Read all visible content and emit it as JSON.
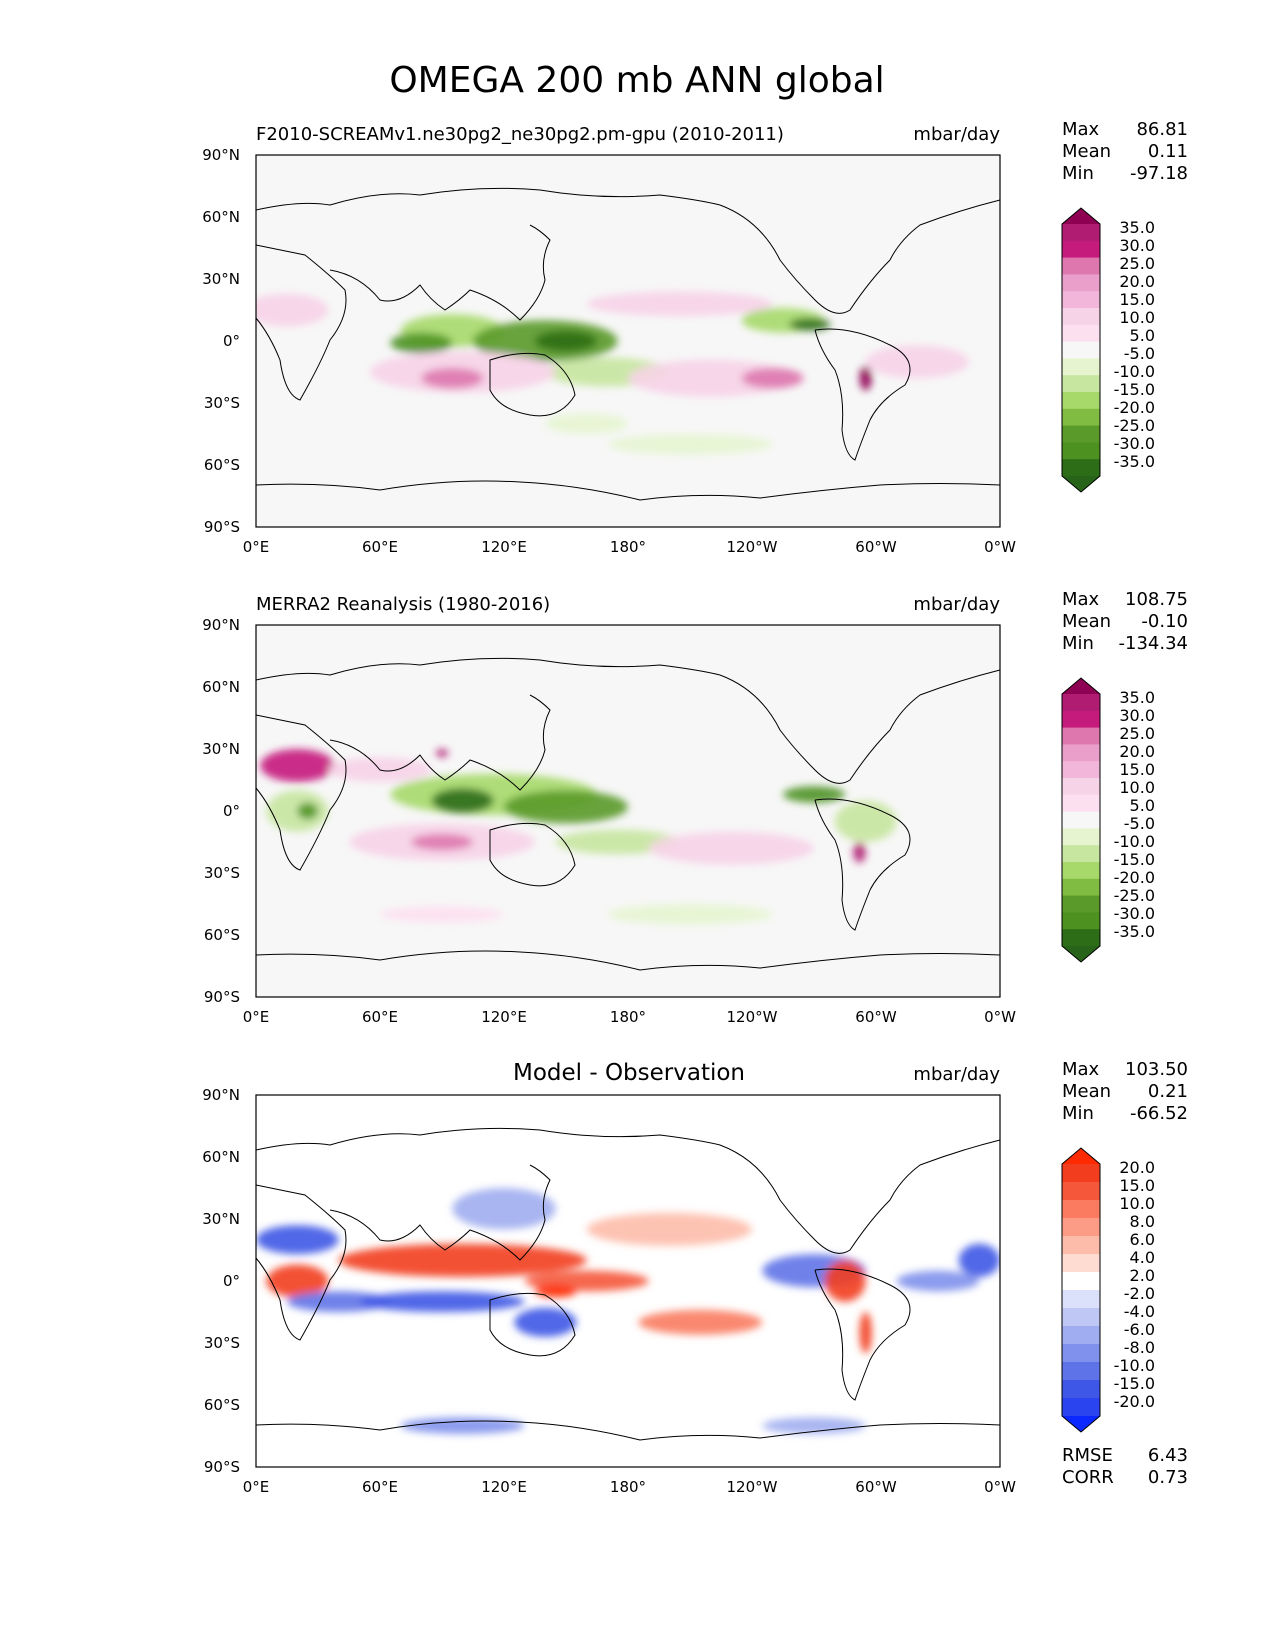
{
  "figure": {
    "title": "OMEGA 200 mb ANN global"
  },
  "axes_ticks": {
    "lat": [
      "90°N",
      "60°N",
      "30°N",
      "0°",
      "30°S",
      "60°S",
      "90°S"
    ],
    "lon": [
      "0°E",
      "60°E",
      "120°E",
      "180°",
      "120°W",
      "60°W",
      "0°W"
    ]
  },
  "panels": [
    {
      "title_left": "F2010-SCREAMv1.ne30pg2_ne30pg2.pm-gpu (2010-2011)",
      "title_center": "",
      "units": "mbar/day",
      "stats": [
        {
          "label": "Max",
          "value": "86.81"
        },
        {
          "label": "Mean",
          "value": "0.11"
        },
        {
          "label": "Min",
          "value": "-97.18"
        }
      ],
      "colorbar": {
        "labels": [
          "35.0",
          "30.0",
          "25.0",
          "20.0",
          "15.0",
          "10.0",
          "5.0",
          "-5.0",
          "-10.0",
          "-15.0",
          "-20.0",
          "-25.0",
          "-30.0",
          "-35.0"
        ],
        "colors": [
          "#8e0152",
          "#b01c72",
          "#c51b7d",
          "#de77ae",
          "#ea9fcb",
          "#f1b6da",
          "#f7d3e8",
          "#fde0ef",
          "#f7f7f7",
          "#e6f5d0",
          "#c7e6a0",
          "#a6d96a",
          "#7fbc41",
          "#5a9a2a",
          "#4d9221",
          "#2d6d18",
          "#276419"
        ]
      }
    },
    {
      "title_left": "MERRA2 Reanalysis (1980-2016)",
      "title_center": "",
      "units": "mbar/day",
      "stats": [
        {
          "label": "Max",
          "value": "108.75"
        },
        {
          "label": "Mean",
          "value": "-0.10"
        },
        {
          "label": "Min",
          "value": "-134.34"
        }
      ],
      "colorbar": {
        "labels": [
          "35.0",
          "30.0",
          "25.0",
          "20.0",
          "15.0",
          "10.0",
          "5.0",
          "-5.0",
          "-10.0",
          "-15.0",
          "-20.0",
          "-25.0",
          "-30.0",
          "-35.0"
        ],
        "colors": [
          "#8e0152",
          "#b01c72",
          "#c51b7d",
          "#de77ae",
          "#ea9fcb",
          "#f1b6da",
          "#f7d3e8",
          "#fde0ef",
          "#f7f7f7",
          "#e6f5d0",
          "#c7e6a0",
          "#a6d96a",
          "#7fbc41",
          "#5a9a2a",
          "#4d9221",
          "#2d6d18",
          "#276419"
        ]
      }
    },
    {
      "title_left": "",
      "title_center": "Model - Observation",
      "units": "mbar/day",
      "stats": [
        {
          "label": "Max",
          "value": "103.50"
        },
        {
          "label": "Mean",
          "value": "0.21"
        },
        {
          "label": "Min",
          "value": "-66.52"
        }
      ],
      "extra_stats": [
        {
          "label": "RMSE",
          "value": "6.43"
        },
        {
          "label": "CORR",
          "value": "0.73"
        }
      ],
      "colorbar": {
        "labels": [
          "20.0",
          "15.0",
          "10.0",
          "8.0",
          "6.0",
          "4.0",
          "2.0",
          "-2.0",
          "-4.0",
          "-6.0",
          "-8.0",
          "-10.0",
          "-15.0",
          "-20.0"
        ],
        "colors": [
          "#ff2a00",
          "#f23d1f",
          "#f5573b",
          "#fa7b60",
          "#fc9c86",
          "#fdbcaa",
          "#fedcd2",
          "#ffffff",
          "#dbe1fb",
          "#bfc8f5",
          "#a0adf0",
          "#7f91ec",
          "#5f73e8",
          "#3f57e6",
          "#2a44f0",
          "#0a28ff"
        ]
      }
    }
  ],
  "chart_data": [
    {
      "type": "heatmap",
      "title": "F2010-SCREAMv1.ne30pg2_ne30pg2.pm-gpu (2010-2011)",
      "units": "mbar/day",
      "xlim": [
        0,
        360
      ],
      "ylim": [
        -90,
        90
      ],
      "stats": {
        "max": 86.81,
        "mean": 0.11,
        "min": -97.18
      },
      "levels": [
        -35,
        -30,
        -25,
        -20,
        -15,
        -10,
        -5,
        5,
        10,
        15,
        20,
        25,
        30,
        35
      ],
      "features": [
        {
          "lon": 15,
          "lat": 15,
          "rx": 20,
          "ry": 8,
          "v": 12
        },
        {
          "lon": 95,
          "lat": 5,
          "rx": 25,
          "ry": 8,
          "v": -18
        },
        {
          "lon": 80,
          "lat": -1,
          "rx": 15,
          "ry": 5,
          "v": -28
        },
        {
          "lon": 140,
          "lat": 0,
          "rx": 35,
          "ry": 10,
          "v": -22
        },
        {
          "lon": 150,
          "lat": 0,
          "rx": 15,
          "ry": 5,
          "v": -32
        },
        {
          "lon": 170,
          "lat": -15,
          "rx": 30,
          "ry": 7,
          "v": -14
        },
        {
          "lon": 100,
          "lat": -15,
          "rx": 45,
          "ry": 10,
          "v": 12
        },
        {
          "lon": 95,
          "lat": -18,
          "rx": 15,
          "ry": 5,
          "v": 22
        },
        {
          "lon": 220,
          "lat": -18,
          "rx": 40,
          "ry": 9,
          "v": 12
        },
        {
          "lon": 250,
          "lat": -18,
          "rx": 15,
          "ry": 5,
          "v": 22
        },
        {
          "lon": 255,
          "lat": 10,
          "rx": 20,
          "ry": 6,
          "v": -20
        },
        {
          "lon": 268,
          "lat": 8,
          "rx": 10,
          "ry": 3,
          "v": -33
        },
        {
          "lon": 205,
          "lat": 18,
          "rx": 45,
          "ry": 6,
          "v": 10
        },
        {
          "lon": 295,
          "lat": -18,
          "rx": 3,
          "ry": 6,
          "v": 36
        },
        {
          "lon": 160,
          "lat": -40,
          "rx": 20,
          "ry": 5,
          "v": -8
        },
        {
          "lon": 210,
          "lat": -50,
          "rx": 40,
          "ry": 5,
          "v": -8
        },
        {
          "lon": 320,
          "lat": -10,
          "rx": 25,
          "ry": 8,
          "v": 10
        }
      ]
    },
    {
      "type": "heatmap",
      "title": "MERRA2 Reanalysis (1980-2016)",
      "units": "mbar/day",
      "xlim": [
        0,
        360
      ],
      "ylim": [
        -90,
        90
      ],
      "stats": {
        "max": 108.75,
        "mean": -0.1,
        "min": -134.34
      },
      "levels": [
        -35,
        -30,
        -25,
        -20,
        -15,
        -10,
        -5,
        5,
        10,
        15,
        20,
        25,
        30,
        35
      ],
      "features": [
        {
          "lon": 20,
          "lat": 22,
          "rx": 18,
          "ry": 8,
          "v": 25
        },
        {
          "lon": 20,
          "lat": 0,
          "rx": 15,
          "ry": 10,
          "v": -14
        },
        {
          "lon": 25,
          "lat": 0,
          "rx": 5,
          "ry": 4,
          "v": -28
        },
        {
          "lon": 115,
          "lat": 8,
          "rx": 50,
          "ry": 10,
          "v": -20
        },
        {
          "lon": 100,
          "lat": 5,
          "rx": 15,
          "ry": 6,
          "v": -32
        },
        {
          "lon": 150,
          "lat": 2,
          "rx": 30,
          "ry": 8,
          "v": -24
        },
        {
          "lon": 175,
          "lat": -15,
          "rx": 30,
          "ry": 6,
          "v": -15
        },
        {
          "lon": 90,
          "lat": -15,
          "rx": 45,
          "ry": 9,
          "v": 14
        },
        {
          "lon": 90,
          "lat": -15,
          "rx": 15,
          "ry": 4,
          "v": 22
        },
        {
          "lon": 230,
          "lat": -18,
          "rx": 40,
          "ry": 8,
          "v": 12
        },
        {
          "lon": 270,
          "lat": 8,
          "rx": 15,
          "ry": 4,
          "v": -28
        },
        {
          "lon": 295,
          "lat": -5,
          "rx": 15,
          "ry": 10,
          "v": -14
        },
        {
          "lon": 292,
          "lat": -20,
          "rx": 3,
          "ry": 5,
          "v": 34
        },
        {
          "lon": 60,
          "lat": 20,
          "rx": 25,
          "ry": 6,
          "v": 12
        },
        {
          "lon": 90,
          "lat": 28,
          "rx": 3,
          "ry": 2,
          "v": 33
        },
        {
          "lon": 210,
          "lat": -50,
          "rx": 40,
          "ry": 5,
          "v": -8
        },
        {
          "lon": 90,
          "lat": -50,
          "rx": 30,
          "ry": 4,
          "v": 9
        }
      ]
    },
    {
      "type": "heatmap",
      "title": "Model - Observation",
      "units": "mbar/day",
      "xlim": [
        0,
        360
      ],
      "ylim": [
        -90,
        90
      ],
      "stats": {
        "max": 103.5,
        "mean": 0.21,
        "min": -66.52,
        "rmse": 6.43,
        "corr": 0.73
      },
      "levels": [
        -20,
        -15,
        -10,
        -8,
        -6,
        -4,
        -2,
        2,
        4,
        6,
        8,
        10,
        15,
        20
      ],
      "features": [
        {
          "lon": 100,
          "lat": 10,
          "rx": 60,
          "ry": 8,
          "v": 15
        },
        {
          "lon": 20,
          "lat": 0,
          "rx": 15,
          "ry": 8,
          "v": 18
        },
        {
          "lon": 20,
          "lat": 20,
          "rx": 20,
          "ry": 7,
          "v": -14
        },
        {
          "lon": 40,
          "lat": -10,
          "rx": 25,
          "ry": 5,
          "v": -10
        },
        {
          "lon": 90,
          "lat": -10,
          "rx": 40,
          "ry": 5,
          "v": -14
        },
        {
          "lon": 160,
          "lat": 0,
          "rx": 30,
          "ry": 5,
          "v": 12
        },
        {
          "lon": 145,
          "lat": -5,
          "rx": 10,
          "ry": 3,
          "v": 20
        },
        {
          "lon": 140,
          "lat": -20,
          "rx": 15,
          "ry": 7,
          "v": -12
        },
        {
          "lon": 215,
          "lat": -20,
          "rx": 30,
          "ry": 6,
          "v": 9
        },
        {
          "lon": 270,
          "lat": 5,
          "rx": 25,
          "ry": 8,
          "v": -10
        },
        {
          "lon": 285,
          "lat": 0,
          "rx": 10,
          "ry": 10,
          "v": 15
        },
        {
          "lon": 295,
          "lat": -25,
          "rx": 3,
          "ry": 10,
          "v": 18
        },
        {
          "lon": 350,
          "lat": 10,
          "rx": 10,
          "ry": 8,
          "v": -12
        },
        {
          "lon": 330,
          "lat": 0,
          "rx": 20,
          "ry": 5,
          "v": -8
        },
        {
          "lon": 120,
          "lat": 35,
          "rx": 25,
          "ry": 10,
          "v": -6
        },
        {
          "lon": 200,
          "lat": 25,
          "rx": 40,
          "ry": 8,
          "v": 5
        },
        {
          "lon": 100,
          "lat": -70,
          "rx": 30,
          "ry": 4,
          "v": -8
        },
        {
          "lon": 270,
          "lat": -70,
          "rx": 25,
          "ry": 4,
          "v": -6
        }
      ]
    }
  ]
}
